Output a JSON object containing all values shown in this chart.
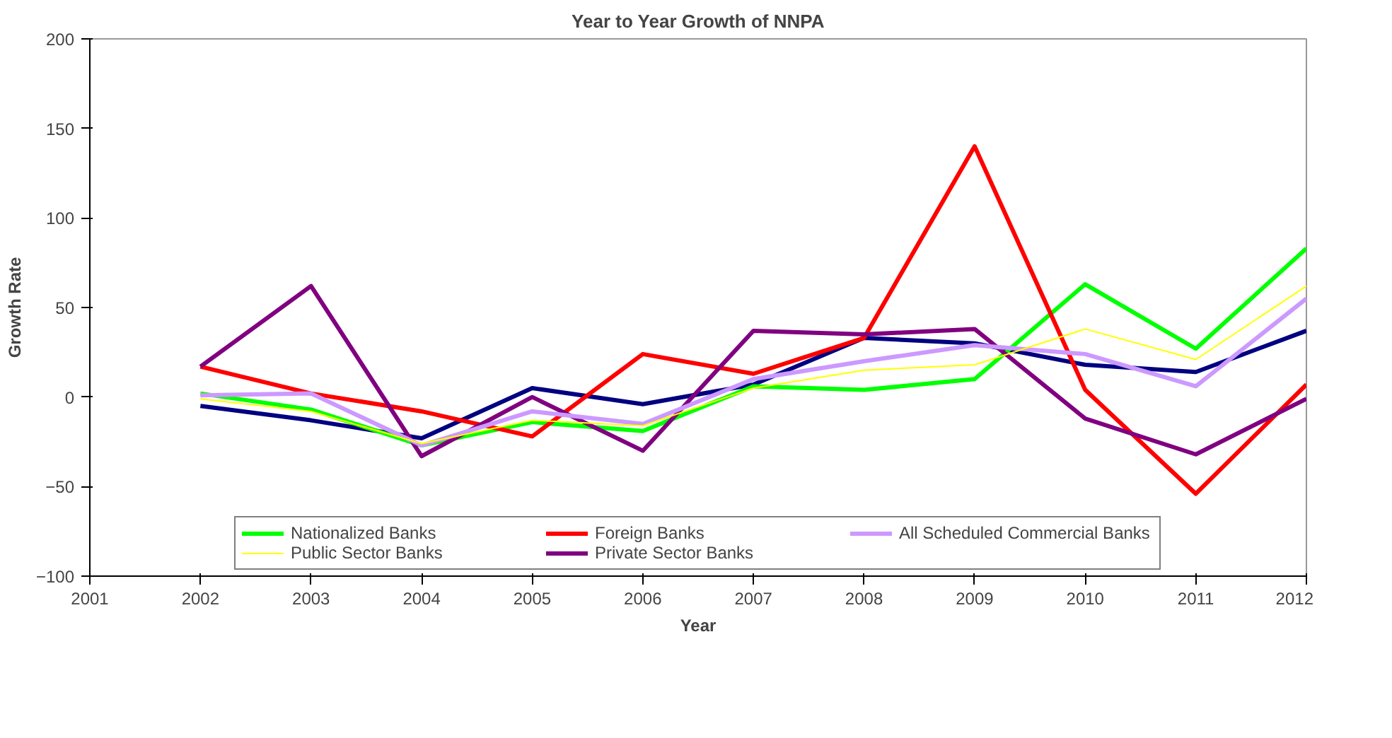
{
  "chart_data": {
    "type": "line",
    "title": "Year to Year Growth of NNPA",
    "xlabel": "Year",
    "ylabel": "Growth Rate",
    "x": [
      2002,
      2003,
      2004,
      2005,
      2006,
      2007,
      2008,
      2009,
      2010,
      2011,
      2012
    ],
    "xlim": [
      2001,
      2012
    ],
    "xticks": [
      2001,
      2002,
      2003,
      2004,
      2005,
      2006,
      2007,
      2008,
      2009,
      2010,
      2011,
      2012
    ],
    "ylim": [
      -100,
      200
    ],
    "yticks": [
      -100,
      -50,
      0,
      50,
      100,
      150,
      200
    ],
    "grid": false,
    "legend": "bottom",
    "marker": "none",
    "line_style": "solid",
    "series": [
      {
        "color": "#000080",
        "values": [
          -5,
          -13,
          -23,
          5,
          -4,
          7,
          33,
          30,
          18,
          14,
          37
        ]
      },
      {
        "name": "Nationalized Banks",
        "color": "#00ff00",
        "values": [
          2,
          -7,
          -27,
          -14,
          -19,
          6,
          4,
          10,
          63,
          27,
          83
        ]
      },
      {
        "name": "Public Sector Banks",
        "color": "#ffff00",
        "values": [
          -1,
          -8,
          -26,
          -13,
          -16,
          5,
          15,
          18,
          38,
          21,
          62
        ]
      },
      {
        "name": "Foreign Banks",
        "color": "#ff0000",
        "values": [
          17,
          2,
          -8,
          -22,
          24,
          13,
          33,
          140,
          4,
          -54,
          7
        ]
      },
      {
        "name": "Private Sector Banks",
        "color": "#800080",
        "values": [
          17,
          62,
          -33,
          0,
          -30,
          37,
          35,
          38,
          -12,
          -32,
          -1
        ]
      },
      {
        "name": "All Scheduled Commercial Banks",
        "color": "#cc99ff",
        "values": [
          1,
          2,
          -27,
          -8,
          -15,
          10,
          20,
          29,
          24,
          6,
          55
        ]
      }
    ]
  }
}
